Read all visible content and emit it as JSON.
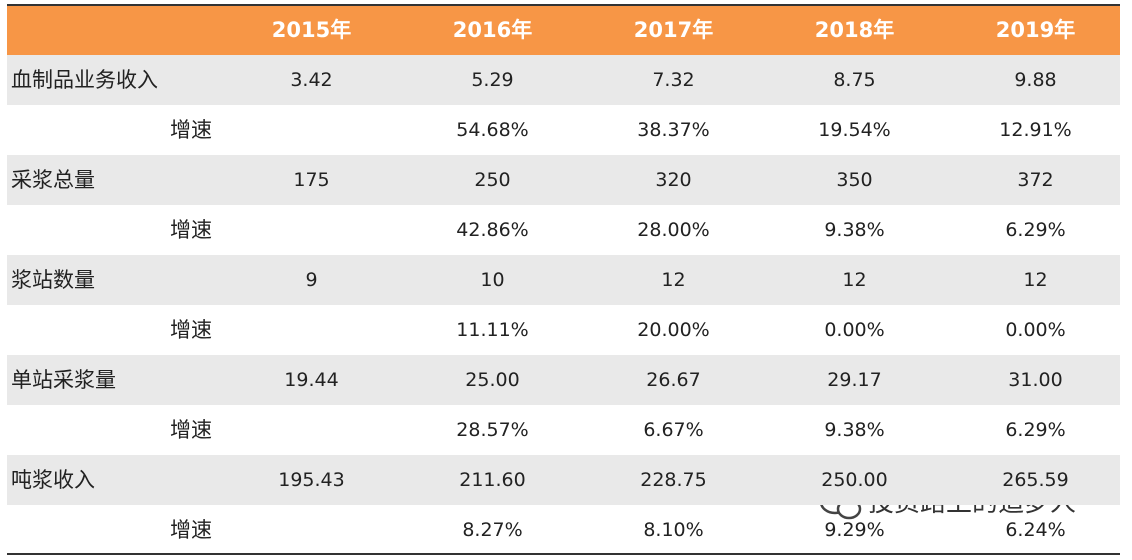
{
  "table": {
    "header": [
      null,
      "2015年",
      "2016年",
      "2017年",
      "2018年",
      "2019年"
    ],
    "rows": [
      [
        "血制品业务收入",
        "3.42",
        "5.29",
        "7.32",
        "8.75",
        "9.88"
      ],
      [
        "增速",
        null,
        "54.68%",
        "38.37%",
        "19.54%",
        "12.91%"
      ],
      [
        "采浆总量",
        "175",
        "250",
        "320",
        "350",
        "372"
      ],
      [
        "增速",
        null,
        "42.86%",
        "28.00%",
        "9.38%",
        "6.29%"
      ],
      [
        "浆站数量",
        "9",
        "10",
        "12",
        "12",
        "12"
      ],
      [
        "增速",
        null,
        "11.11%",
        "20.00%",
        "0.00%",
        "0.00%"
      ],
      [
        "单站采浆量",
        "19.44",
        "25.00",
        "26.67",
        "29.17",
        "31.00"
      ],
      [
        "增速",
        null,
        "28.57%",
        "6.67%",
        "9.38%",
        "6.29%"
      ],
      [
        "吨浆收入",
        "195.43",
        "211.60",
        "228.75",
        "250.00",
        "265.59"
      ],
      [
        "增速",
        null,
        "8.27%",
        "8.10%",
        "9.29%",
        "6.24%"
      ]
    ]
  },
  "watermark": "投资路上的追梦人"
}
